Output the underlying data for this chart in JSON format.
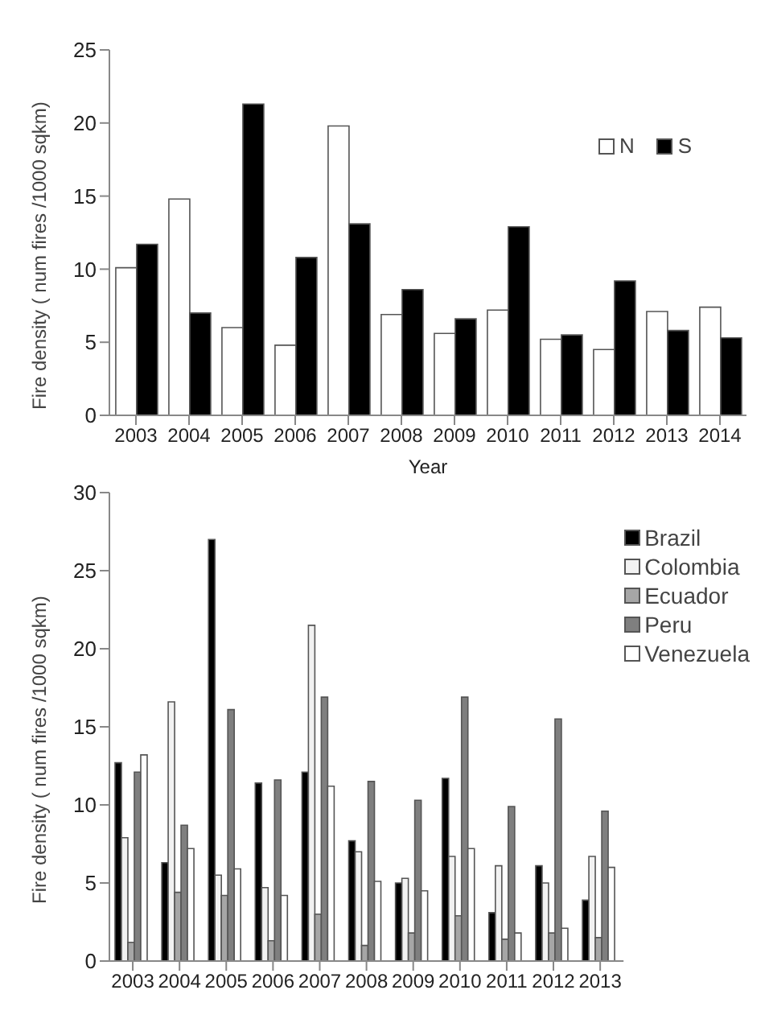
{
  "chart_data": [
    {
      "type": "bar",
      "xlabel": "Year",
      "ylabel": "Fire density ( num fires /1000 sqkm)",
      "categories": [
        "2003",
        "2004",
        "2005",
        "2006",
        "2007",
        "2008",
        "2009",
        "2010",
        "2011",
        "2012",
        "2013",
        "2014"
      ],
      "series": [
        {
          "name": "N",
          "color": "#ffffff",
          "values": [
            10.1,
            14.8,
            6.0,
            4.8,
            19.8,
            6.9,
            5.6,
            7.2,
            5.2,
            4.5,
            7.1,
            7.4
          ]
        },
        {
          "name": "S",
          "color": "#000000",
          "values": [
            11.7,
            7.0,
            21.3,
            10.8,
            13.1,
            8.6,
            6.6,
            12.9,
            5.5,
            9.2,
            5.8,
            5.3
          ]
        }
      ],
      "ylim": [
        0,
        25
      ],
      "yticks": [
        0,
        5,
        10,
        15,
        20,
        25
      ],
      "grid": false,
      "legend": "top right"
    },
    {
      "type": "bar",
      "ylabel": "Fire density ( num fires /1000 sqkm)",
      "categories": [
        "2003",
        "2004",
        "2005",
        "2006",
        "2007",
        "2008",
        "2009",
        "2010",
        "2011",
        "2012",
        "2013"
      ],
      "series": [
        {
          "name": "Brazil",
          "color": "#000000",
          "values": [
            12.7,
            6.3,
            27.0,
            11.4,
            12.1,
            7.7,
            5.0,
            11.7,
            3.1,
            6.1,
            3.9
          ]
        },
        {
          "name": "Colombia",
          "color": "#f2f2f2",
          "values": [
            7.9,
            16.6,
            5.5,
            4.7,
            21.5,
            7.0,
            5.3,
            6.7,
            6.1,
            5.0,
            6.7
          ]
        },
        {
          "name": "Ecuador",
          "color": "#a6a6a6",
          "values": [
            1.2,
            4.4,
            4.2,
            1.3,
            3.0,
            1.0,
            1.8,
            2.9,
            1.4,
            1.8,
            1.5
          ]
        },
        {
          "name": "Peru",
          "color": "#7f7f7f",
          "values": [
            12.1,
            8.7,
            16.1,
            11.6,
            16.9,
            11.5,
            10.3,
            16.9,
            9.9,
            15.5,
            9.6
          ]
        },
        {
          "name": "Venezuela",
          "color": "#ffffff",
          "values": [
            13.2,
            7.2,
            5.9,
            4.2,
            11.2,
            5.1,
            4.5,
            7.2,
            1.8,
            2.1,
            6.0
          ]
        }
      ],
      "ylim": [
        0,
        30
      ],
      "yticks": [
        0,
        5,
        10,
        15,
        20,
        25,
        30
      ],
      "grid": false,
      "legend": "right"
    }
  ]
}
